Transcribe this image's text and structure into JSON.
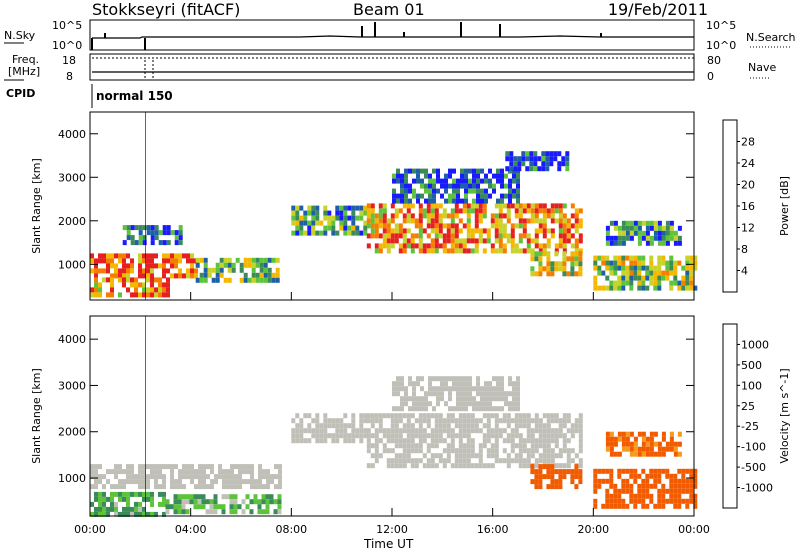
{
  "header": {
    "site": "Stokkseyri (fitACF)",
    "beam": "Beam 01",
    "date": "19/Feb/2011"
  },
  "side_labels": {
    "nsky": "N.Sky",
    "nsky_tick_hi": "10^5",
    "nsky_tick_lo": "10^0",
    "nsearch": "N.Search",
    "freq": "Freq.",
    "freq_unit": "[MHz]",
    "freq_tick_hi": "18",
    "freq_tick_lo": "8",
    "nave": "Nave",
    "nave_tick_hi": "80",
    "nave_tick_lo": "0",
    "cpid": "CPID",
    "cpid_value": "normal 150"
  },
  "colors": {
    "power": [
      "#1a1aff",
      "#1f5fa8",
      "#3b8a5a",
      "#5cc33a",
      "#c8d22a",
      "#f5b800",
      "#f57d00",
      "#e62020"
    ],
    "velocity": [
      "#e62020",
      "#f25a00",
      "#f59a20",
      "#c0c0b8",
      "#c0c0b8",
      "#5cc33a",
      "#3b8a5a",
      "#1f5fa8",
      "#1a1aff"
    ],
    "ground_scatter": "#c0c0b8"
  },
  "chart_data": [
    {
      "type": "heatmap",
      "panel": "power",
      "ylabel": "Slant Range [km]",
      "xlim_hours": [
        0,
        24
      ],
      "ylim_km": [
        180,
        4500
      ],
      "yticks": [
        1000,
        2000,
        3000,
        4000
      ],
      "xticks": [
        "00:00",
        "04:00",
        "08:00",
        "12:00",
        "16:00",
        "20:00",
        "00:00"
      ],
      "colorbar": {
        "label": "Power [dB]",
        "range": [
          0,
          32
        ],
        "ticks": [
          "4",
          "8",
          "12",
          "16",
          "20",
          "24",
          "28"
        ]
      },
      "regions": [
        {
          "t": [
            0.0,
            4.2
          ],
          "r": [
            700,
            1250
          ],
          "level": 0.85
        },
        {
          "t": [
            0.0,
            3.2
          ],
          "r": [
            250,
            700
          ],
          "level": 0.75
        },
        {
          "t": [
            4.2,
            7.5
          ],
          "r": [
            600,
            1150
          ],
          "level": 0.45
        },
        {
          "t": [
            1.3,
            3.6
          ],
          "r": [
            1450,
            1900
          ],
          "level": 0.2
        },
        {
          "t": [
            8.0,
            11.0
          ],
          "r": [
            1750,
            2350
          ],
          "level": 0.35
        },
        {
          "t": [
            11.0,
            19.5
          ],
          "r": [
            1300,
            2400
          ],
          "level": 0.75
        },
        {
          "t": [
            12.0,
            17.0
          ],
          "r": [
            2500,
            3200
          ],
          "level": 0.15
        },
        {
          "t": [
            16.5,
            19.0
          ],
          "r": [
            3200,
            3600
          ],
          "level": 0.12
        },
        {
          "t": [
            17.5,
            19.5
          ],
          "r": [
            800,
            1300
          ],
          "level": 0.55
        },
        {
          "t": [
            20.0,
            24.0
          ],
          "r": [
            400,
            1200
          ],
          "level": 0.5
        },
        {
          "t": [
            20.5,
            23.5
          ],
          "r": [
            1500,
            2000
          ],
          "level": 0.3
        }
      ]
    },
    {
      "type": "heatmap",
      "panel": "velocity",
      "ylabel": "Slant Range [km]",
      "xlabel": "Time UT",
      "xlim_hours": [
        0,
        24
      ],
      "ylim_km": [
        180,
        4500
      ],
      "yticks": [
        1000,
        2000,
        3000,
        4000
      ],
      "xticks": [
        "00:00",
        "04:00",
        "08:00",
        "12:00",
        "16:00",
        "20:00",
        "00:00"
      ],
      "colorbar": {
        "label": "Velocity [m s^-1]",
        "ticks": [
          "1000",
          "500",
          "100",
          "25",
          "-25",
          "-100",
          "-500",
          "-1000"
        ]
      },
      "regions": [
        {
          "t": [
            0.0,
            7.5
          ],
          "r": [
            800,
            1300
          ],
          "v": "ground"
        },
        {
          "t": [
            0.0,
            3.0
          ],
          "r": [
            250,
            700
          ],
          "v": 120
        },
        {
          "t": [
            3.0,
            7.5
          ],
          "r": [
            300,
            650
          ],
          "v": 80
        },
        {
          "t": [
            8.0,
            11.0
          ],
          "r": [
            1800,
            2400
          ],
          "v": "ground"
        },
        {
          "t": [
            11.0,
            19.5
          ],
          "r": [
            1300,
            2400
          ],
          "v": "ground"
        },
        {
          "t": [
            12.0,
            17.0
          ],
          "r": [
            2500,
            3200
          ],
          "v": "ground"
        },
        {
          "t": [
            17.5,
            19.5
          ],
          "r": [
            800,
            1300
          ],
          "v": -250
        },
        {
          "t": [
            20.0,
            24.0
          ],
          "r": [
            400,
            1200
          ],
          "v": -200
        },
        {
          "t": [
            20.5,
            23.5
          ],
          "r": [
            1500,
            2000
          ],
          "v": -150
        }
      ]
    }
  ]
}
